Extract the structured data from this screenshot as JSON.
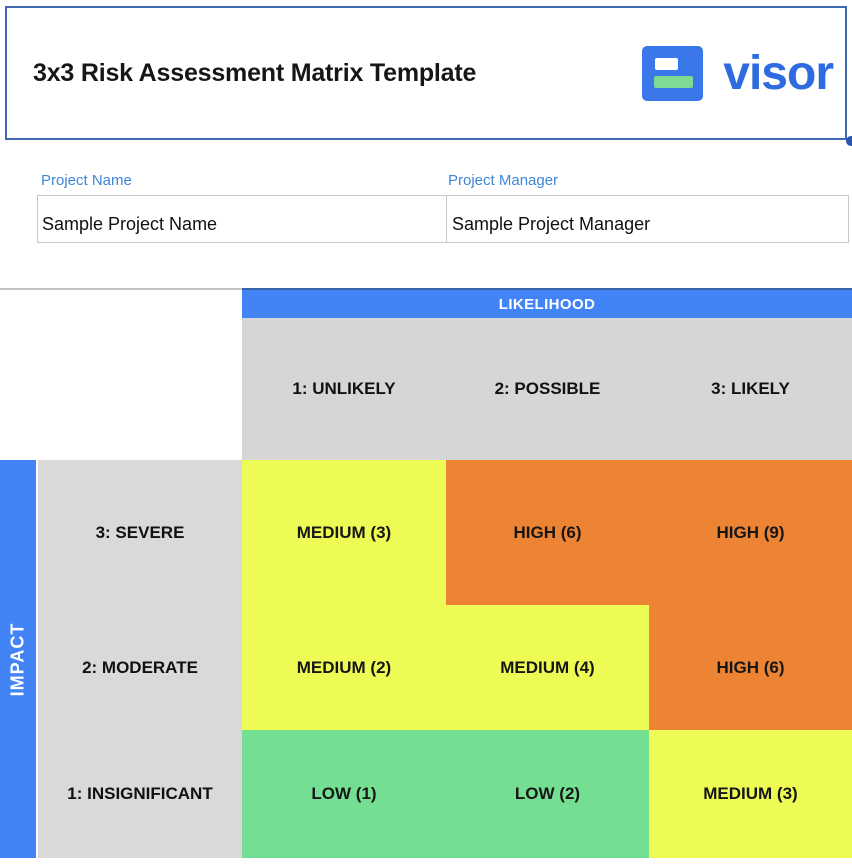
{
  "header": {
    "title": "3x3 Risk Assessment Matrix Template",
    "logo": {
      "wordmark": "visor",
      "wordmark_color": "#2e6be0",
      "square_color": "#3a77e8",
      "accent_green": "#7ddb94"
    }
  },
  "project": {
    "name_label": "Project Name",
    "name_value": "Sample Project Name",
    "manager_label": "Project Manager",
    "manager_value": "Sample Project Manager",
    "label_color": "#3e86da"
  },
  "matrix": {
    "likelihood_label": "LIKELIHOOD",
    "impact_label": "IMPACT",
    "columns": [
      "1: UNLIKELY",
      "2: POSSIBLE",
      "3: LIKELY"
    ],
    "rows": [
      {
        "label": "3: SEVERE",
        "cells": [
          {
            "label": "MEDIUM (3)",
            "level": "medium"
          },
          {
            "label": "HIGH (6)",
            "level": "high"
          },
          {
            "label": "HIGH (9)",
            "level": "high"
          }
        ]
      },
      {
        "label": "2: MODERATE",
        "cells": [
          {
            "label": "MEDIUM (2)",
            "level": "medium"
          },
          {
            "label": "MEDIUM (4)",
            "level": "medium"
          },
          {
            "label": "HIGH (6)",
            "level": "high"
          }
        ]
      },
      {
        "label": "1: INSIGNIFICANT",
        "cells": [
          {
            "label": "LOW (1)",
            "level": "low"
          },
          {
            "label": "LOW (2)",
            "level": "low"
          },
          {
            "label": "MEDIUM (3)",
            "level": "medium"
          }
        ]
      }
    ],
    "colors": {
      "high": "#ed8434",
      "medium": "#eefb54",
      "low": "#74df92",
      "header_gray": "#d6d6d6",
      "accent_blue": "#4284f5"
    }
  }
}
